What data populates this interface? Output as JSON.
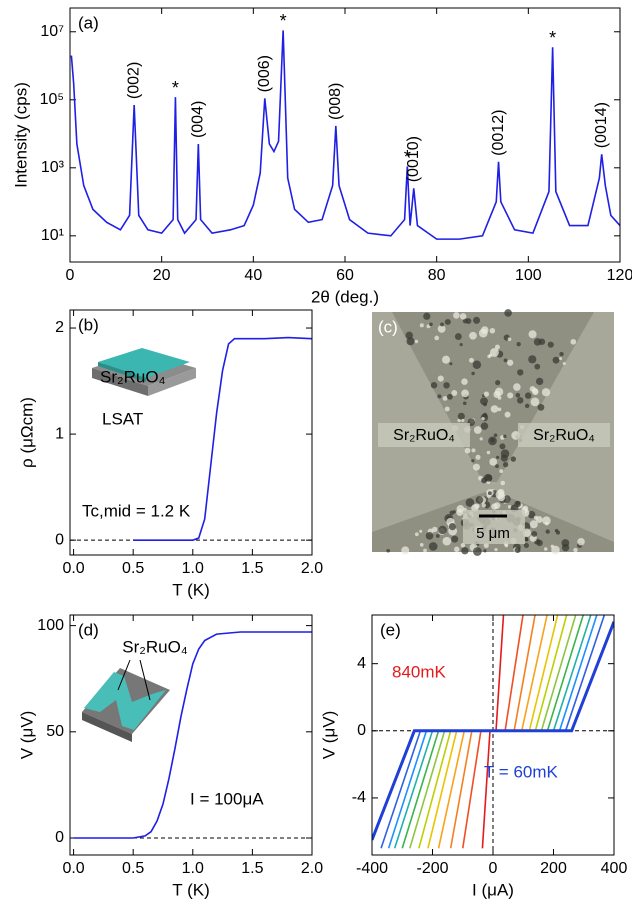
{
  "chart_data": [
    {
      "type": "line",
      "panel_label": "(a)",
      "xlabel": "2θ (deg.)",
      "ylabel": "Intensity (cps)",
      "log_y": true,
      "xlim": [
        0,
        120
      ],
      "ylim": [
        1.7,
        50000000
      ],
      "xticks": [
        0,
        20,
        40,
        60,
        80,
        100,
        120
      ],
      "yticks": [
        {
          "value": 10,
          "label": "10¹"
        },
        {
          "value": 1000,
          "label": "10³"
        },
        {
          "value": 100000,
          "label": "10⁵"
        },
        {
          "value": 10000000,
          "label": "10⁷"
        }
      ],
      "x": [
        0.3,
        0.8,
        1.5,
        3,
        5,
        8,
        11,
        13,
        14,
        15,
        17,
        20,
        22.5,
        23,
        23.5,
        25,
        27.5,
        28,
        28.5,
        31,
        35,
        38,
        40,
        41.5,
        42.5,
        43.5,
        44.5,
        45.5,
        46.5,
        47.5,
        49,
        52,
        55,
        57.3,
        58,
        58.7,
        61,
        65,
        70,
        73,
        73.6,
        74.2,
        75,
        75.8,
        80,
        85,
        90,
        93,
        93.5,
        94,
        97,
        101,
        104.5,
        105.3,
        106,
        109,
        113,
        115.5,
        116,
        116.8,
        118,
        120
      ],
      "series": [
        {
          "color": "#1f1fe6",
          "values": [
            2000000,
            300000,
            5000,
            300,
            60,
            25,
            15,
            40,
            70000,
            40,
            15,
            12,
            30,
            120000,
            30,
            12,
            30,
            5000,
            30,
            12,
            15,
            20,
            80,
            700,
            110000,
            5000,
            3000,
            6000,
            11000000,
            500,
            60,
            25,
            30,
            300,
            17000,
            300,
            30,
            12,
            10,
            30,
            1100,
            20,
            250,
            20,
            8,
            8,
            10,
            100,
            1500,
            100,
            15,
            12,
            200,
            3500000,
            200,
            20,
            20,
            500,
            2500,
            300,
            40,
            20
          ]
        }
      ],
      "annotations": [
        {
          "text": "(002)",
          "x": 14
        },
        {
          "text": "*",
          "x": 23
        },
        {
          "text": "(004)",
          "x": 28
        },
        {
          "text": "(006)",
          "x": 42.5
        },
        {
          "text": "*",
          "x": 46.5
        },
        {
          "text": "(008)",
          "x": 58
        },
        {
          "text": "*",
          "x": 73.6
        },
        {
          "text": "(0010)",
          "x": 75
        },
        {
          "text": "(0012)",
          "x": 93.5
        },
        {
          "text": "*",
          "x": 105.3
        },
        {
          "text": "(0014)",
          "x": 116
        }
      ]
    },
    {
      "type": "line",
      "panel_label": "(b)",
      "xlabel": "T (K)",
      "ylabel": "ρ (μΩcm)",
      "zero_line_y": true,
      "xlim": [
        -0.03,
        2.0
      ],
      "ylim": [
        -0.14,
        2.17
      ],
      "xticks": [
        {
          "value": 0,
          "label": "0.0"
        },
        {
          "value": 0.5,
          "label": "0.5"
        },
        {
          "value": 1,
          "label": "1.0"
        },
        {
          "value": 1.5,
          "label": "1.5"
        },
        {
          "value": 2,
          "label": "2.0"
        }
      ],
      "yticks": [
        0,
        1,
        2
      ],
      "x": [
        0.5,
        1.0,
        1.05,
        1.1,
        1.15,
        1.2,
        1.25,
        1.3,
        1.35,
        1.4,
        1.6,
        1.8,
        2.0
      ],
      "series": [
        {
          "color": "#1f1fe6",
          "values": [
            0,
            0,
            0.02,
            0.2,
            0.7,
            1.2,
            1.6,
            1.85,
            1.9,
            1.9,
            1.9,
            1.91,
            1.9
          ]
        }
      ],
      "annotations": [
        {
          "text": "Sr₂RuO₄"
        },
        {
          "text": "LSAT"
        },
        {
          "text": "Tc,mid = 1.2 K"
        }
      ]
    },
    {
      "type": "micrograph",
      "panel_label": "(c)",
      "labels": [
        "Sr₂RuO₄",
        "Sr₂RuO₄"
      ],
      "scale_bar": "5 μm"
    },
    {
      "type": "line",
      "panel_label": "(d)",
      "xlabel": "T (K)",
      "ylabel": "V (μV)",
      "zero_line_y": true,
      "xlim": [
        -0.03,
        2.0
      ],
      "ylim": [
        -8,
        105
      ],
      "xticks": [
        {
          "value": 0,
          "label": "0.0"
        },
        {
          "value": 0.5,
          "label": "0.5"
        },
        {
          "value": 1,
          "label": "1.0"
        },
        {
          "value": 1.5,
          "label": "1.5"
        },
        {
          "value": 2,
          "label": "2.0"
        }
      ],
      "yticks": [
        0,
        50,
        100
      ],
      "x": [
        0,
        0.5,
        0.6,
        0.65,
        0.7,
        0.75,
        0.8,
        0.85,
        0.9,
        0.95,
        1.0,
        1.05,
        1.1,
        1.2,
        1.4,
        2.0
      ],
      "series": [
        {
          "color": "#1f1fe6",
          "values": [
            0,
            0,
            1,
            3,
            8,
            16,
            28,
            42,
            57,
            70,
            82,
            89,
            93,
            96,
            97,
            97
          ]
        }
      ],
      "annotations": [
        {
          "text": "Sr₂RuO₄"
        },
        {
          "text": "I = 100μA"
        }
      ]
    },
    {
      "type": "line",
      "panel_label": "(e)",
      "xlabel": "I (μA)",
      "ylabel": "V (μV)",
      "zero_line_y": true,
      "zero_line_x": true,
      "xlim": [
        -400,
        400
      ],
      "ylim": [
        -7.4,
        6.9
      ],
      "xticks": [
        -400,
        -200,
        0,
        200,
        400
      ],
      "yticks": [
        -4,
        0,
        4
      ],
      "series": [
        {
          "color": "#e41a1c",
          "x": [
            -35,
            -10,
            0,
            10,
            35
          ],
          "values": [
            -7,
            0,
            0,
            0,
            7
          ]
        },
        {
          "color": "#f04e23",
          "x": [
            -100,
            -40,
            0,
            40,
            100
          ],
          "values": [
            -7,
            0,
            0,
            0,
            7
          ]
        },
        {
          "color": "#f57f20",
          "x": [
            -140,
            -70,
            0,
            70,
            140
          ],
          "values": [
            -7,
            0,
            0,
            0,
            7
          ]
        },
        {
          "color": "#f9a21a",
          "x": [
            -180,
            -95,
            0,
            95,
            180
          ],
          "values": [
            -7,
            0,
            0,
            0,
            7
          ]
        },
        {
          "color": "#e8c400",
          "x": [
            -215,
            -120,
            0,
            120,
            215
          ],
          "values": [
            -7,
            0,
            0,
            0,
            7
          ]
        },
        {
          "color": "#bcd000",
          "x": [
            -245,
            -140,
            0,
            140,
            245
          ],
          "values": [
            -7,
            0,
            0,
            0,
            7
          ]
        },
        {
          "color": "#8cc63f",
          "x": [
            -275,
            -160,
            0,
            160,
            275
          ],
          "values": [
            -7,
            0,
            0,
            0,
            7
          ]
        },
        {
          "color": "#3cb44b",
          "x": [
            -300,
            -180,
            0,
            180,
            300
          ],
          "values": [
            -7,
            0,
            0,
            0,
            7
          ]
        },
        {
          "color": "#20b2aa",
          "x": [
            -325,
            -200,
            0,
            200,
            325
          ],
          "values": [
            -7,
            0,
            0,
            0,
            7
          ]
        },
        {
          "color": "#1e90ff",
          "x": [
            -345,
            -220,
            0,
            220,
            345
          ],
          "values": [
            -7,
            0,
            0,
            0,
            7
          ]
        },
        {
          "color": "#3060e0",
          "x": [
            -370,
            -240,
            0,
            240,
            370
          ],
          "values": [
            -7,
            0,
            0,
            0,
            7
          ]
        },
        {
          "color": "#1f3fd6",
          "x": [
            -400,
            -260,
            0,
            260,
            400
          ],
          "values": [
            -6.5,
            0,
            0,
            0,
            6.5
          ]
        }
      ],
      "annotations": [
        {
          "text": "840mK",
          "color": "#e41a1c"
        },
        {
          "text": "T = 60mK",
          "color": "#1f3fd6"
        }
      ]
    }
  ]
}
